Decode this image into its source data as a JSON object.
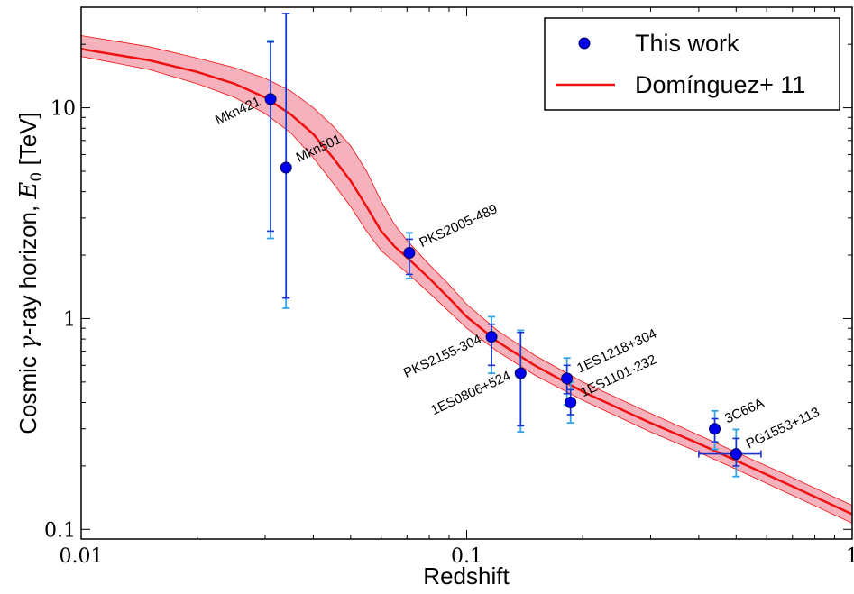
{
  "chart_data": {
    "type": "scatter",
    "xlabel": "Redshift",
    "ylabel_prefix": "Cosmic ",
    "ylabel_gamma": "γ",
    "ylabel_mid": "-ray horizon, ",
    "ylabel_var": "E",
    "ylabel_sub": "0",
    "ylabel_unit": " [TeV]",
    "xscale": "log",
    "yscale": "log",
    "xlim": [
      0.01,
      1
    ],
    "ylim": [
      0.09,
      30
    ],
    "x_ticks": [
      {
        "value": 0.01,
        "label": "0.01"
      },
      {
        "value": 0.1,
        "label": "0.1"
      },
      {
        "value": 1,
        "label": "1"
      }
    ],
    "y_ticks": [
      {
        "value": 0.1,
        "label": "0.1"
      },
      {
        "value": 1,
        "label": "1"
      },
      {
        "value": 10,
        "label": "10"
      }
    ],
    "legend": {
      "position": "top-right",
      "entries": [
        {
          "label": "This work",
          "kind": "marker"
        },
        {
          "label": "Domínguez+ 11",
          "kind": "line"
        }
      ]
    },
    "colors": {
      "marker": "#0000ee",
      "marker_edge": "#000055",
      "error_dark": "#1a33cc",
      "error_light": "#33a3e8",
      "model_line": "#ee1111",
      "model_band": "#f4a5b0"
    },
    "model_curve": [
      {
        "x": 0.01,
        "y": 19.0,
        "lo": 17.5,
        "hi": 22.0
      },
      {
        "x": 0.015,
        "y": 16.8,
        "lo": 15.2,
        "hi": 19.5
      },
      {
        "x": 0.02,
        "y": 14.8,
        "lo": 13.0,
        "hi": 17.2
      },
      {
        "x": 0.025,
        "y": 13.0,
        "lo": 11.2,
        "hi": 15.5
      },
      {
        "x": 0.03,
        "y": 11.2,
        "lo": 9.4,
        "hi": 13.8
      },
      {
        "x": 0.035,
        "y": 9.3,
        "lo": 7.6,
        "hi": 12.0
      },
      {
        "x": 0.04,
        "y": 7.5,
        "lo": 5.8,
        "hi": 10.0
      },
      {
        "x": 0.045,
        "y": 5.8,
        "lo": 4.4,
        "hi": 8.2
      },
      {
        "x": 0.05,
        "y": 4.5,
        "lo": 3.4,
        "hi": 6.6
      },
      {
        "x": 0.055,
        "y": 3.4,
        "lo": 2.6,
        "hi": 5.0
      },
      {
        "x": 0.06,
        "y": 2.6,
        "lo": 2.1,
        "hi": 3.6
      },
      {
        "x": 0.065,
        "y": 2.2,
        "lo": 1.85,
        "hi": 2.8
      },
      {
        "x": 0.07,
        "y": 1.95,
        "lo": 1.65,
        "hi": 2.35
      },
      {
        "x": 0.08,
        "y": 1.55,
        "lo": 1.32,
        "hi": 1.8
      },
      {
        "x": 0.09,
        "y": 1.25,
        "lo": 1.08,
        "hi": 1.45
      },
      {
        "x": 0.1,
        "y": 1.02,
        "lo": 0.9,
        "hi": 1.17
      },
      {
        "x": 0.12,
        "y": 0.78,
        "lo": 0.7,
        "hi": 0.88
      },
      {
        "x": 0.15,
        "y": 0.6,
        "lo": 0.54,
        "hi": 0.67
      },
      {
        "x": 0.2,
        "y": 0.45,
        "lo": 0.41,
        "hi": 0.5
      },
      {
        "x": 0.3,
        "y": 0.32,
        "lo": 0.29,
        "hi": 0.355
      },
      {
        "x": 0.4,
        "y": 0.255,
        "lo": 0.232,
        "hi": 0.28
      },
      {
        "x": 0.5,
        "y": 0.212,
        "lo": 0.193,
        "hi": 0.232
      },
      {
        "x": 0.7,
        "y": 0.16,
        "lo": 0.145,
        "hi": 0.176
      },
      {
        "x": 1.0,
        "y": 0.118,
        "lo": 0.107,
        "hi": 0.13
      }
    ],
    "points": [
      {
        "name": "Mkn421",
        "x": 0.031,
        "y": 11.0,
        "dark": [
          2.6,
          20.5
        ],
        "light": [
          2.4,
          20.8
        ],
        "xerr": null,
        "label_side": "left"
      },
      {
        "name": "Mkn501",
        "x": 0.034,
        "y": 5.2,
        "dark": [
          1.25,
          28.0
        ],
        "light": [
          1.12,
          28.0
        ],
        "xerr": null,
        "label_side": "right"
      },
      {
        "name": "PKS2005-489",
        "x": 0.071,
        "y": 2.05,
        "dark": [
          1.62,
          2.38
        ],
        "light": [
          1.55,
          2.55
        ],
        "xerr": null,
        "label_side": "right"
      },
      {
        "name": "PKS2155-304",
        "x": 0.116,
        "y": 0.82,
        "dark": [
          0.6,
          0.94
        ],
        "light": [
          0.55,
          1.02
        ],
        "xerr": null,
        "label_side": "left"
      },
      {
        "name": "1ES0806+524",
        "x": 0.138,
        "y": 0.55,
        "dark": [
          0.31,
          0.86
        ],
        "light": [
          0.29,
          0.88
        ],
        "xerr": null,
        "label_side": "left"
      },
      {
        "name": "1ES1218+304",
        "x": 0.182,
        "y": 0.52,
        "dark": [
          0.44,
          0.6
        ],
        "light": [
          0.39,
          0.65
        ],
        "xerr": null,
        "label_side": "right"
      },
      {
        "name": "1ES1101-232",
        "x": 0.186,
        "y": 0.4,
        "dark": [
          0.35,
          0.46
        ],
        "light": [
          0.32,
          0.5
        ],
        "xerr": null,
        "label_side": "right"
      },
      {
        "name": "3C66A",
        "x": 0.44,
        "y": 0.3,
        "dark": [
          0.26,
          0.335
        ],
        "light": [
          0.24,
          0.365
        ],
        "xerr": null,
        "label_side": "right"
      },
      {
        "name": "PG1553+113",
        "x": 0.5,
        "y": 0.228,
        "dark": [
          0.2,
          0.27
        ],
        "light": [
          0.178,
          0.298
        ],
        "xerr": [
          0.4,
          0.58
        ],
        "label_side": "right"
      }
    ]
  }
}
